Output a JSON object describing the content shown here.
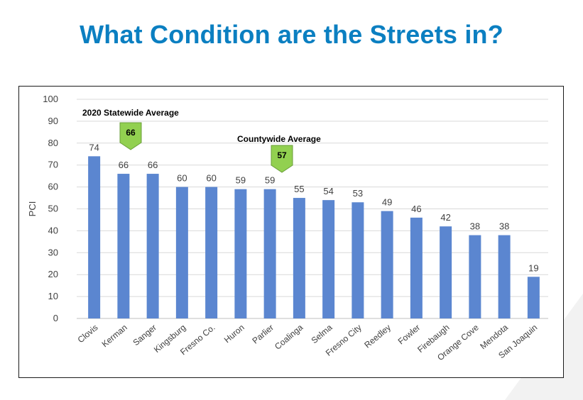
{
  "page": {
    "title": "What Condition are the Streets in?"
  },
  "colors": {
    "title": "#0b7fc1",
    "bar": "#5b86d0",
    "marker": "#92d050",
    "gridline": "#d9d9d9"
  },
  "chart_data": {
    "type": "bar",
    "title": "",
    "xlabel": "",
    "ylabel": "PCI",
    "ylim": [
      0,
      100
    ],
    "yticks": [
      0,
      10,
      20,
      30,
      40,
      50,
      60,
      70,
      80,
      90,
      100
    ],
    "grid": true,
    "categories": [
      "Clovis",
      "Kerman",
      "Sanger",
      "Kingsburg",
      "Fresno Co.",
      "Huron",
      "Parlier",
      "Coalinga",
      "Selma",
      "Fresno City",
      "Reedley",
      "Fowler",
      "Firebaugh",
      "Orange Cove",
      "Mendota",
      "San Joaquin"
    ],
    "values": [
      74,
      66,
      66,
      60,
      60,
      59,
      59,
      55,
      54,
      53,
      49,
      46,
      42,
      38,
      38,
      19
    ],
    "data_labels": [
      "74",
      "66",
      "66",
      "60",
      "60",
      "59",
      "59",
      "55",
      "54",
      "53",
      "49",
      "46",
      "42",
      "38",
      "38",
      "19"
    ],
    "annotations": [
      {
        "label": "2020 Statewide Average",
        "value": 66,
        "value_label": "66"
      },
      {
        "label": "Countywide Average",
        "value": 57,
        "value_label": "57"
      }
    ]
  }
}
